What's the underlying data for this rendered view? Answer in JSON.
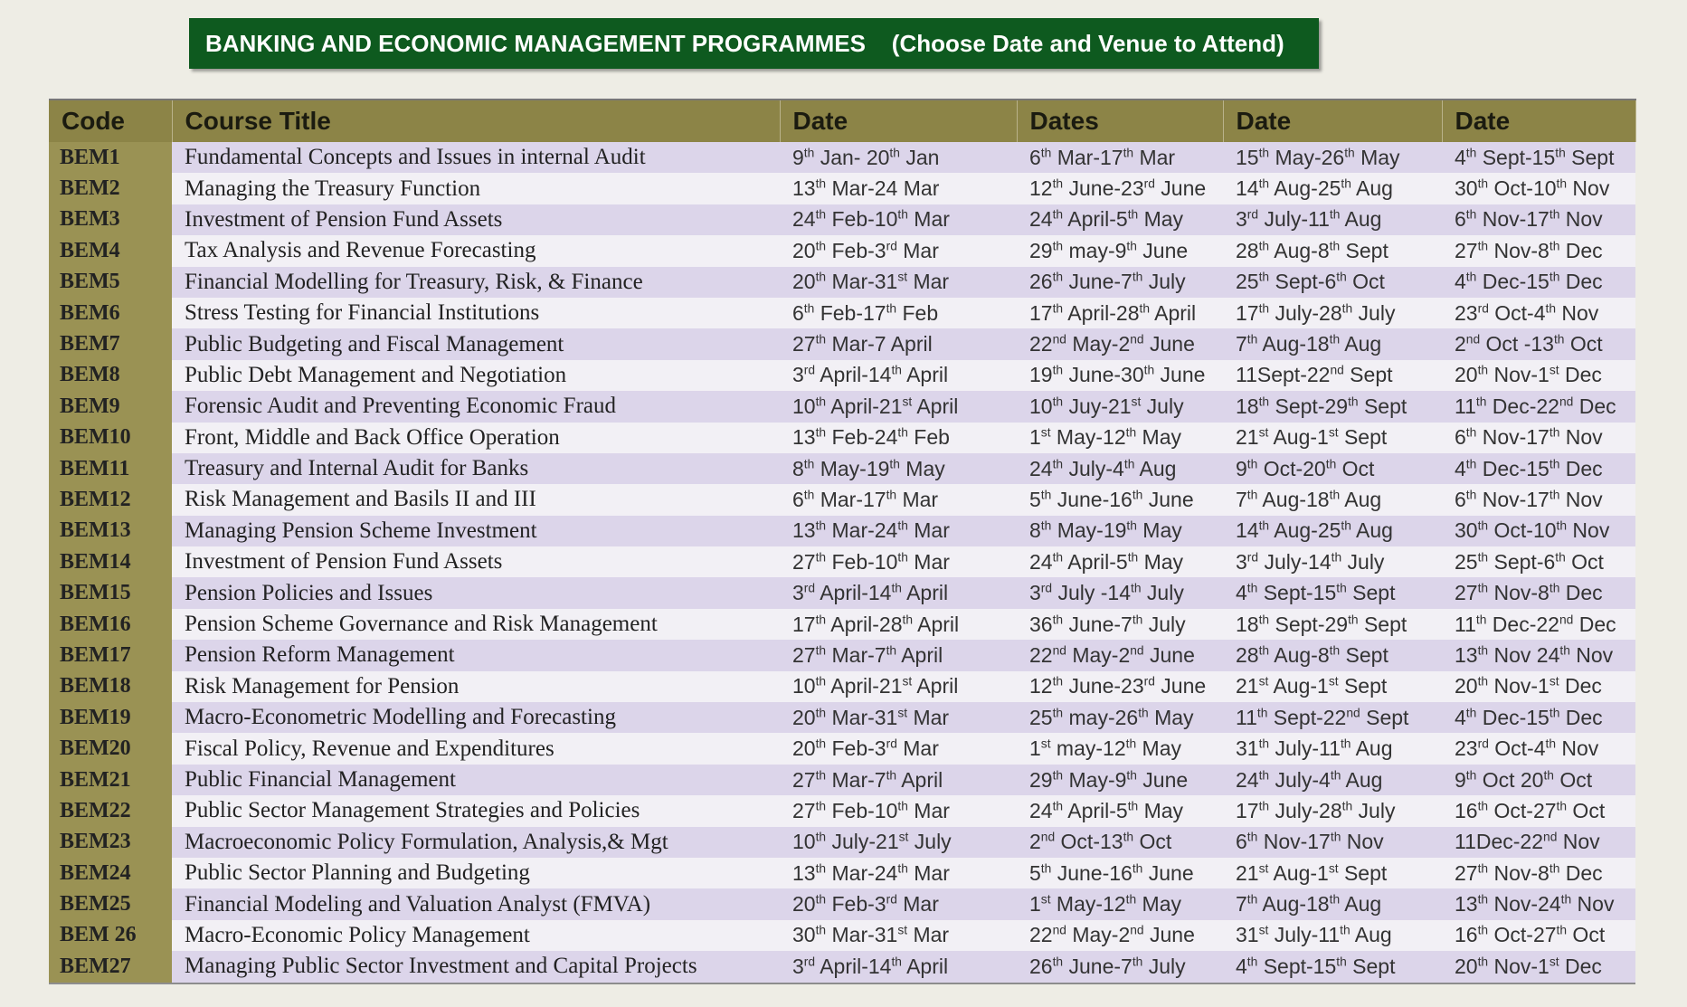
{
  "header": {
    "title": "BANKING AND ECONOMIC MANAGEMENT PROGRAMMES    (Choose Date and Venue to Attend)"
  },
  "table": {
    "columns": [
      "Code",
      "Course Title",
      "Date",
      "Dates",
      "Date",
      "Date"
    ],
    "rows": [
      [
        "BEM1",
        "Fundamental Concepts and Issues in internal Audit",
        "9th Jan- 20th Jan",
        "6th Mar-17th Mar",
        "15th May-26th May",
        "4th Sept-15th Sept"
      ],
      [
        "BEM2",
        "Managing the Treasury Function",
        "13th Mar-24 Mar",
        "12th June-23rd June",
        "14th Aug-25th Aug",
        "30th Oct-10th Nov"
      ],
      [
        "BEM3",
        "Investment of Pension Fund Assets",
        "24th Feb-10th Mar",
        "24th April-5th May",
        "3rd July-11th Aug",
        "6th Nov-17th Nov"
      ],
      [
        "BEM4",
        "Tax Analysis and Revenue Forecasting",
        "20th Feb-3rd Mar",
        "29th may-9th June",
        "28th Aug-8th Sept",
        "27th Nov-8th Dec"
      ],
      [
        "BEM5",
        "Financial Modelling for Treasury, Risk, & Finance",
        "20th Mar-31st Mar",
        "26th June-7th July",
        "25th Sept-6th Oct",
        "4th Dec-15th Dec"
      ],
      [
        "BEM6",
        "Stress Testing for Financial Institutions",
        "6th Feb-17th Feb",
        "17th April-28th April",
        "17th July-28th July",
        "23rd Oct-4th Nov"
      ],
      [
        "BEM7",
        "Public Budgeting and Fiscal Management",
        "27th Mar-7 April",
        "22nd May-2nd June",
        "7th Aug-18th Aug",
        "2nd Oct -13th Oct"
      ],
      [
        "BEM8",
        "Public Debt Management and  Negotiation",
        "3rd April-14th April",
        "19th June-30th June",
        "11Sept-22nd Sept",
        "20th Nov-1st Dec"
      ],
      [
        "BEM9",
        "Forensic Audit and Preventing  Economic Fraud",
        "10th April-21st April",
        "10th Juy-21st July",
        "18th Sept-29th Sept",
        "11th Dec-22nd Dec"
      ],
      [
        "BEM10",
        "Front, Middle and Back Office Operation",
        "13th Feb-24th Feb",
        "1st May-12th May",
        "21st Aug-1st Sept",
        "6th Nov-17th Nov"
      ],
      [
        "BEM11",
        "Treasury and Internal Audit for Banks",
        "8th May-19th May",
        "24th July-4th Aug",
        "9th Oct-20th Oct",
        "4th Dec-15th Dec"
      ],
      [
        "BEM12",
        "Risk Management and Basils II and III",
        "6th Mar-17th Mar",
        "5th June-16th June",
        "7th Aug-18th Aug",
        "6th Nov-17th Nov"
      ],
      [
        "BEM13",
        "Managing Pension Scheme Investment",
        "13th Mar-24th Mar",
        "8th May-19th May",
        "14th Aug-25th Aug",
        "30th Oct-10th Nov"
      ],
      [
        "BEM14",
        "Investment of Pension Fund Assets",
        "27th Feb-10th Mar",
        "24th April-5th May",
        "3rd July-14th July",
        "25th Sept-6th Oct"
      ],
      [
        "BEM15",
        "Pension Policies and Issues",
        "3rd April-14th April",
        "3rd July -14th July",
        "4th Sept-15th Sept",
        "27th Nov-8th Dec"
      ],
      [
        "BEM16",
        "Pension Scheme  Governance and Risk Management",
        "17th April-28th April",
        "36th June-7th July",
        "18th Sept-29th Sept",
        "11th Dec-22nd Dec"
      ],
      [
        "BEM17",
        "Pension Reform Management",
        "27th Mar-7th April",
        "22nd May-2nd June",
        "28th Aug-8th Sept",
        "13th Nov 24th Nov"
      ],
      [
        "BEM18",
        "Risk Management for Pension",
        "10th April-21st April",
        "12th June-23rd June",
        "21st Aug-1st Sept",
        "20th Nov-1st Dec"
      ],
      [
        "BEM19",
        "Macro-Econometric Modelling and Forecasting",
        "20th Mar-31st Mar",
        "25th may-26th May",
        "11th Sept-22nd Sept",
        "4th Dec-15th Dec"
      ],
      [
        "BEM20",
        "Fiscal Policy, Revenue and Expenditures",
        "20th Feb-3rd Mar",
        "1st may-12th May",
        "31th July-11th Aug",
        "23rd Oct-4th Nov"
      ],
      [
        "BEM21",
        "Public Financial Management",
        "27th Mar-7th April",
        "29th May-9th June",
        "24th July-4th Aug",
        "9th Oct 20th Oct"
      ],
      [
        "BEM22",
        "Public Sector Management Strategies and Policies",
        "27th Feb-10th Mar",
        "24th April-5th May",
        "17th July-28th July",
        "16th Oct-27th Oct"
      ],
      [
        "BEM23",
        "Macroeconomic Policy Formulation, Analysis,& Mgt",
        "10th July-21st July",
        "2nd Oct-13th Oct",
        "6th Nov-17th Nov",
        "11Dec-22nd Nov"
      ],
      [
        "BEM24",
        "Public Sector Planning and Budgeting",
        "13th Mar-24th Mar",
        "5th June-16th June",
        "21st Aug-1st Sept",
        "27th Nov-8th Dec"
      ],
      [
        "BEM25",
        "Financial Modeling  and Valuation Analyst (FMVA)",
        "20th Feb-3rd Mar",
        "1st May-12th May",
        "7th Aug-18th Aug",
        "13th Nov-24th Nov"
      ],
      [
        "BEM 26",
        "Macro-Economic Policy Management",
        "30th Mar-31st Mar",
        "22nd May-2nd June",
        "31st July-11th Aug",
        "16th Oct-27th Oct"
      ],
      [
        "BEM27",
        "Managing Public Sector Investment and Capital Projects",
        "3rd April-14th April",
        "26th June-7th July",
        "4th Sept-15th Sept",
        "20th Nov-1st Dec"
      ]
    ]
  }
}
